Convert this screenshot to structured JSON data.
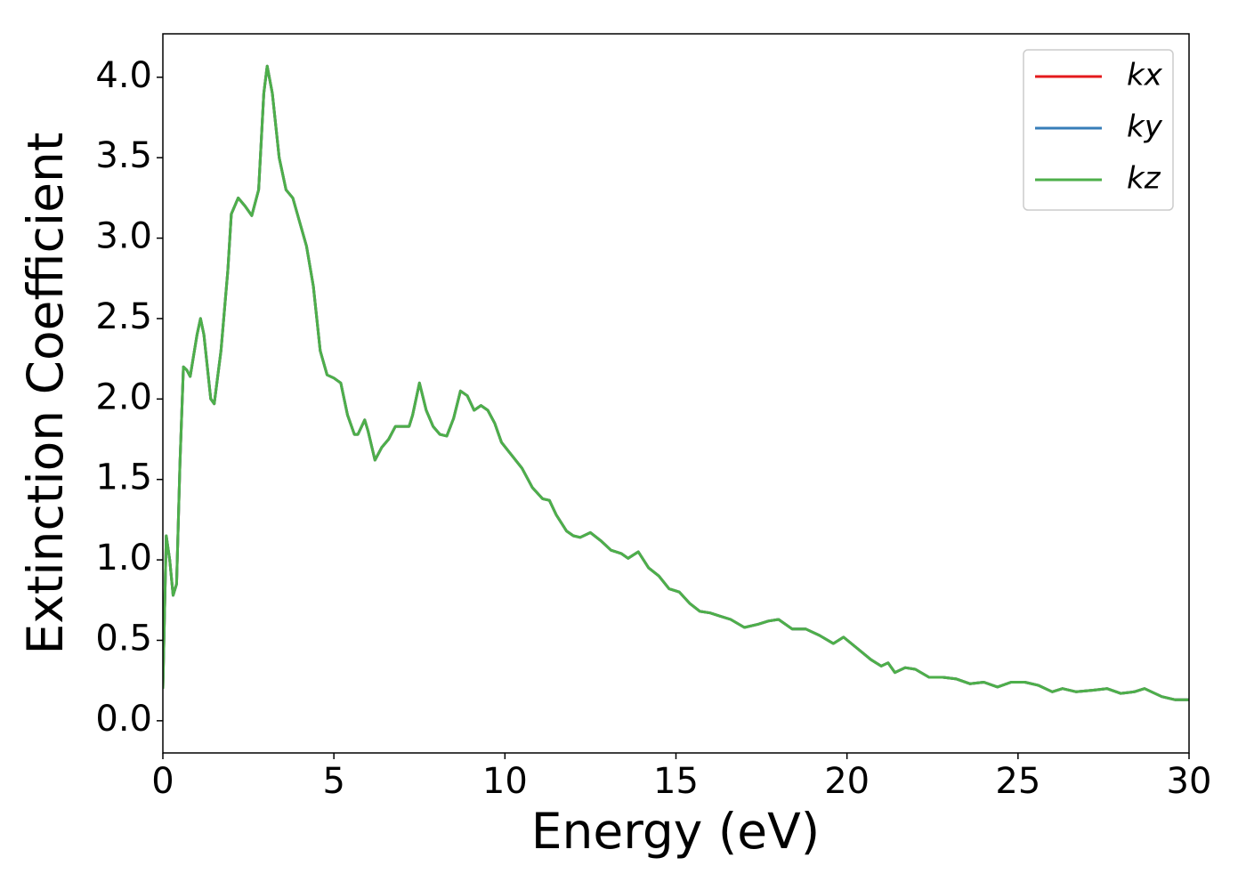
{
  "chart_data": {
    "type": "line",
    "xlabel": "Energy (eV)",
    "ylabel": "Extinction Coefficient",
    "x": [
      0,
      0.1,
      0.2,
      0.3,
      0.4,
      0.5,
      0.6,
      0.7,
      0.8,
      1.0,
      1.1,
      1.2,
      1.4,
      1.5,
      1.7,
      1.9,
      2.0,
      2.2,
      2.4,
      2.6,
      2.8,
      2.95,
      3.05,
      3.2,
      3.4,
      3.6,
      3.8,
      4.0,
      4.2,
      4.4,
      4.6,
      4.8,
      5.0,
      5.2,
      5.4,
      5.6,
      5.7,
      5.9,
      6.0,
      6.2,
      6.4,
      6.6,
      6.8,
      7.0,
      7.2,
      7.3,
      7.5,
      7.7,
      7.9,
      8.1,
      8.3,
      8.5,
      8.7,
      8.9,
      9.1,
      9.3,
      9.5,
      9.7,
      9.9,
      10.2,
      10.5,
      10.8,
      11.1,
      11.3,
      11.5,
      11.8,
      12.0,
      12.2,
      12.5,
      12.8,
      13.1,
      13.4,
      13.6,
      13.9,
      14.2,
      14.5,
      14.8,
      15.1,
      15.4,
      15.7,
      16.0,
      16.3,
      16.6,
      17.0,
      17.4,
      17.7,
      18.0,
      18.4,
      18.8,
      19.2,
      19.6,
      19.9,
      20.3,
      20.7,
      21.0,
      21.2,
      21.4,
      21.7,
      22.0,
      22.4,
      22.8,
      23.2,
      23.6,
      24.0,
      24.4,
      24.8,
      25.2,
      25.6,
      26.0,
      26.3,
      26.7,
      27.2,
      27.6,
      28.0,
      28.4,
      28.7,
      29.2,
      29.6,
      30.0
    ],
    "series": [
      {
        "name": "kx",
        "color": "#e41a1c",
        "values": [
          0.2,
          1.15,
          1.0,
          0.78,
          0.85,
          1.6,
          2.2,
          2.18,
          2.14,
          2.4,
          2.5,
          2.4,
          2.0,
          1.97,
          2.3,
          2.8,
          3.15,
          3.25,
          3.2,
          3.14,
          3.3,
          3.9,
          4.07,
          3.9,
          3.5,
          3.3,
          3.25,
          3.1,
          2.95,
          2.7,
          2.3,
          2.15,
          2.13,
          2.1,
          1.9,
          1.78,
          1.78,
          1.87,
          1.8,
          1.62,
          1.7,
          1.75,
          1.83,
          1.83,
          1.83,
          1.9,
          2.1,
          1.93,
          1.83,
          1.78,
          1.77,
          1.88,
          2.05,
          2.02,
          1.93,
          1.96,
          1.93,
          1.85,
          1.73,
          1.65,
          1.57,
          1.45,
          1.38,
          1.37,
          1.28,
          1.18,
          1.15,
          1.14,
          1.17,
          1.12,
          1.06,
          1.04,
          1.01,
          1.05,
          0.95,
          0.9,
          0.82,
          0.8,
          0.73,
          0.68,
          0.67,
          0.65,
          0.63,
          0.58,
          0.6,
          0.62,
          0.63,
          0.57,
          0.57,
          0.53,
          0.48,
          0.52,
          0.45,
          0.38,
          0.34,
          0.36,
          0.3,
          0.33,
          0.32,
          0.27,
          0.27,
          0.26,
          0.23,
          0.24,
          0.21,
          0.24,
          0.24,
          0.22,
          0.18,
          0.2,
          0.18,
          0.19,
          0.2,
          0.17,
          0.18,
          0.2,
          0.15,
          0.13,
          0.13
        ]
      },
      {
        "name": "ky",
        "color": "#377eb8",
        "values": [
          0.2,
          1.15,
          1.0,
          0.78,
          0.85,
          1.6,
          2.2,
          2.18,
          2.14,
          2.4,
          2.5,
          2.4,
          2.0,
          1.97,
          2.3,
          2.8,
          3.15,
          3.25,
          3.2,
          3.14,
          3.3,
          3.9,
          4.07,
          3.9,
          3.5,
          3.3,
          3.25,
          3.1,
          2.95,
          2.7,
          2.3,
          2.15,
          2.13,
          2.1,
          1.9,
          1.78,
          1.78,
          1.87,
          1.8,
          1.62,
          1.7,
          1.75,
          1.83,
          1.83,
          1.83,
          1.9,
          2.1,
          1.93,
          1.83,
          1.78,
          1.77,
          1.88,
          2.05,
          2.02,
          1.93,
          1.96,
          1.93,
          1.85,
          1.73,
          1.65,
          1.57,
          1.45,
          1.38,
          1.37,
          1.28,
          1.18,
          1.15,
          1.14,
          1.17,
          1.12,
          1.06,
          1.04,
          1.01,
          1.05,
          0.95,
          0.9,
          0.82,
          0.8,
          0.73,
          0.68,
          0.67,
          0.65,
          0.63,
          0.58,
          0.6,
          0.62,
          0.63,
          0.57,
          0.57,
          0.53,
          0.48,
          0.52,
          0.45,
          0.38,
          0.34,
          0.36,
          0.3,
          0.33,
          0.32,
          0.27,
          0.27,
          0.26,
          0.23,
          0.24,
          0.21,
          0.24,
          0.24,
          0.22,
          0.18,
          0.2,
          0.18,
          0.19,
          0.2,
          0.17,
          0.18,
          0.2,
          0.15,
          0.13,
          0.13
        ]
      },
      {
        "name": "kz",
        "color": "#4daf4a",
        "values": [
          0.2,
          1.15,
          1.0,
          0.78,
          0.85,
          1.6,
          2.2,
          2.18,
          2.14,
          2.4,
          2.5,
          2.4,
          2.0,
          1.97,
          2.3,
          2.8,
          3.15,
          3.25,
          3.2,
          3.14,
          3.3,
          3.9,
          4.07,
          3.9,
          3.5,
          3.3,
          3.25,
          3.1,
          2.95,
          2.7,
          2.3,
          2.15,
          2.13,
          2.1,
          1.9,
          1.78,
          1.78,
          1.87,
          1.8,
          1.62,
          1.7,
          1.75,
          1.83,
          1.83,
          1.83,
          1.9,
          2.1,
          1.93,
          1.83,
          1.78,
          1.77,
          1.88,
          2.05,
          2.02,
          1.93,
          1.96,
          1.93,
          1.85,
          1.73,
          1.65,
          1.57,
          1.45,
          1.38,
          1.37,
          1.28,
          1.18,
          1.15,
          1.14,
          1.17,
          1.12,
          1.06,
          1.04,
          1.01,
          1.05,
          0.95,
          0.9,
          0.82,
          0.8,
          0.73,
          0.68,
          0.67,
          0.65,
          0.63,
          0.58,
          0.6,
          0.62,
          0.63,
          0.57,
          0.57,
          0.53,
          0.48,
          0.52,
          0.45,
          0.38,
          0.34,
          0.36,
          0.3,
          0.33,
          0.32,
          0.27,
          0.27,
          0.26,
          0.23,
          0.24,
          0.21,
          0.24,
          0.24,
          0.22,
          0.18,
          0.2,
          0.18,
          0.19,
          0.2,
          0.17,
          0.18,
          0.2,
          0.15,
          0.13,
          0.13
        ]
      }
    ],
    "xlim": [
      0,
      30
    ],
    "xticks": [
      0,
      5,
      10,
      15,
      20,
      25,
      30
    ],
    "ylim": [
      -0.2,
      4.27
    ],
    "yticks": [
      {
        "value": 0,
        "label": "0.0"
      },
      0.5,
      {
        "value": 1,
        "label": "1.0"
      },
      1.5,
      {
        "value": 2,
        "label": "2.0"
      },
      2.5,
      {
        "value": 3,
        "label": "3.0"
      },
      3.5,
      {
        "value": 4,
        "label": "4.0"
      }
    ],
    "grid": false,
    "legend": "upper right"
  }
}
